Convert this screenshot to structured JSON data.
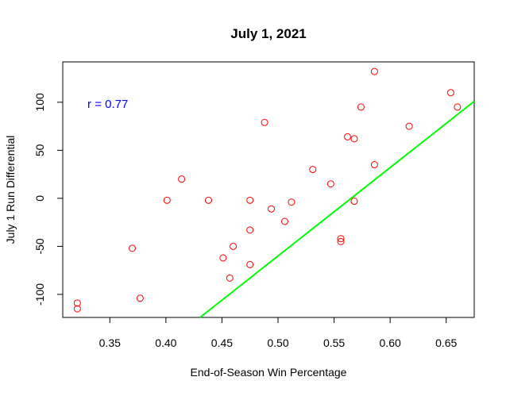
{
  "chart_data": {
    "type": "scatter",
    "title": "July 1, 2021",
    "xlabel": "End-of-Season Win Percentage",
    "ylabel": "July 1 Run Differential",
    "xlim": [
      0.308,
      0.675
    ],
    "ylim": [
      -124,
      142
    ],
    "xticks": [
      0.35,
      0.4,
      0.45,
      0.5,
      0.55,
      0.6,
      0.65
    ],
    "xtick_labels": [
      "0.35",
      "0.40",
      "0.45",
      "0.50",
      "0.55",
      "0.60",
      "0.65"
    ],
    "yticks": [
      -100,
      -50,
      0,
      50,
      100
    ],
    "ytick_labels": [
      "-100",
      "-50",
      "0",
      "50",
      "100"
    ],
    "grid": false,
    "points": [
      [
        0.321,
        -109
      ],
      [
        0.321,
        -115
      ],
      [
        0.37,
        -52
      ],
      [
        0.377,
        -104
      ],
      [
        0.401,
        -2
      ],
      [
        0.414,
        20
      ],
      [
        0.438,
        -2
      ],
      [
        0.451,
        -62
      ],
      [
        0.457,
        -83
      ],
      [
        0.46,
        -50
      ],
      [
        0.475,
        -33
      ],
      [
        0.475,
        -69
      ],
      [
        0.475,
        -2
      ],
      [
        0.488,
        79
      ],
      [
        0.494,
        -11
      ],
      [
        0.506,
        -24
      ],
      [
        0.512,
        -4
      ],
      [
        0.531,
        30
      ],
      [
        0.547,
        15
      ],
      [
        0.556,
        -42
      ],
      [
        0.556,
        -45
      ],
      [
        0.562,
        64
      ],
      [
        0.568,
        62
      ],
      [
        0.568,
        -3
      ],
      [
        0.574,
        95
      ],
      [
        0.586,
        132
      ],
      [
        0.586,
        35
      ],
      [
        0.617,
        75
      ],
      [
        0.654,
        110
      ],
      [
        0.66,
        95
      ]
    ],
    "fit_line": {
      "slope": 920,
      "intercept": -520
    },
    "annotation": "r = 0.77",
    "colors": {
      "points": "#ff0000",
      "fit_line": "#00ff00",
      "annotation": "#0000ff",
      "axes": "#000000"
    }
  }
}
